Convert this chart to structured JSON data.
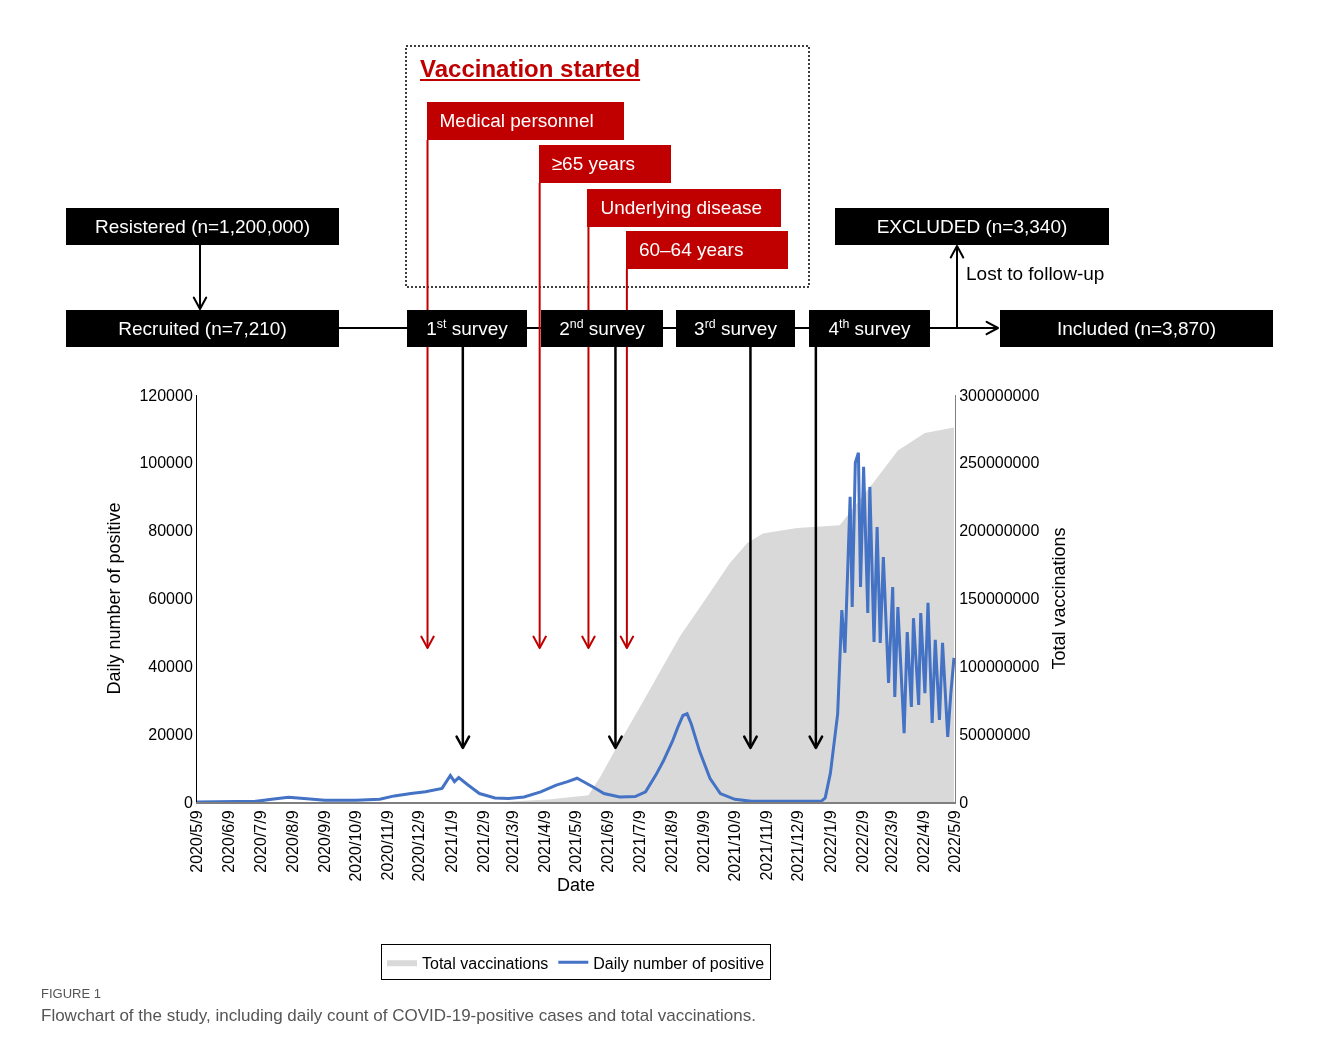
{
  "chart_data": {
    "type": "line",
    "xlabel": "Date",
    "ylabel": "Daily number of positive",
    "y2label": "Total vaccinations",
    "legend": "bottom",
    "xlim": [
      "2020-05-09",
      "2022-05-09"
    ],
    "xticks": [
      {
        "value": "2020-05-09",
        "label": "2020/5/9"
      },
      {
        "value": "2020-06-09",
        "label": "2020/6/9"
      },
      {
        "value": "2020-07-09",
        "label": "2020/7/9"
      },
      {
        "value": "2020-08-09",
        "label": "2020/8/9"
      },
      {
        "value": "2020-09-09",
        "label": "2020/9/9"
      },
      {
        "value": "2020-10-09",
        "label": "2020/10/9"
      },
      {
        "value": "2020-11-09",
        "label": "2020/11/9"
      },
      {
        "value": "2020-12-09",
        "label": "2020/12/9"
      },
      {
        "value": "2021-01-09",
        "label": "2021/1/9"
      },
      {
        "value": "2021-02-09",
        "label": "2021/2/9"
      },
      {
        "value": "2021-03-09",
        "label": "2021/3/9"
      },
      {
        "value": "2021-04-09",
        "label": "2021/4/9"
      },
      {
        "value": "2021-05-09",
        "label": "2021/5/9"
      },
      {
        "value": "2021-06-09",
        "label": "2021/6/9"
      },
      {
        "value": "2021-07-09",
        "label": "2021/7/9"
      },
      {
        "value": "2021-08-09",
        "label": "2021/8/9"
      },
      {
        "value": "2021-09-09",
        "label": "2021/9/9"
      },
      {
        "value": "2021-10-09",
        "label": "2021/10/9"
      },
      {
        "value": "2021-11-09",
        "label": "2021/11/9"
      },
      {
        "value": "2021-12-09",
        "label": "2021/12/9"
      },
      {
        "value": "2022-01-09",
        "label": "2022/1/9"
      },
      {
        "value": "2022-02-09",
        "label": "2022/2/9"
      },
      {
        "value": "2022-03-09",
        "label": "2022/3/9"
      },
      {
        "value": "2022-04-09",
        "label": "2022/4/9"
      },
      {
        "value": "2022-05-09",
        "label": "2022/5/9"
      }
    ],
    "ylim": [
      0,
      120000
    ],
    "yticks": [
      0,
      20000,
      40000,
      60000,
      80000,
      100000,
      120000
    ],
    "y2lim": [
      0,
      300000000
    ],
    "y2ticks": [
      0,
      50000000,
      100000000,
      150000000,
      200000000,
      250000000,
      300000000
    ],
    "series": [
      {
        "name": "Total vaccinations",
        "type": "area",
        "axis": "y2",
        "color": "#d9d9d9",
        "x": [
          "2021-03-01",
          "2021-04-15",
          "2021-05-21",
          "2021-06-01",
          "2021-06-14",
          "2021-07-17",
          "2021-08-17",
          "2021-09-12",
          "2021-10-04",
          "2021-10-21",
          "2021-11-05",
          "2021-12-08",
          "2022-01-18",
          "2022-02-21",
          "2022-03-15",
          "2022-04-10",
          "2022-05-08"
        ],
        "values": [
          0,
          2000000,
          5000000,
          18000000,
          36000000,
          80000000,
          122000000,
          151000000,
          176000000,
          191000000,
          198000000,
          202000000,
          204000000,
          237000000,
          259000000,
          272000000,
          276000000
        ]
      },
      {
        "name": "Daily number of positive",
        "type": "line",
        "color": "#4472c4",
        "x": [
          "2020-05-09",
          "2020-07-05",
          "2020-07-20",
          "2020-08-05",
          "2020-08-20",
          "2020-09-09",
          "2020-10-09",
          "2020-11-01",
          "2020-11-15",
          "2020-12-01",
          "2020-12-15",
          "2020-12-31",
          "2021-01-08",
          "2021-01-12",
          "2021-01-16",
          "2021-01-25",
          "2021-02-05",
          "2021-02-20",
          "2021-03-05",
          "2021-03-20",
          "2021-04-05",
          "2021-04-20",
          "2021-05-01",
          "2021-05-10",
          "2021-05-15",
          "2021-05-25",
          "2021-06-05",
          "2021-06-20",
          "2021-07-05",
          "2021-07-15",
          "2021-07-25",
          "2021-08-01",
          "2021-08-10",
          "2021-08-15",
          "2021-08-20",
          "2021-08-24",
          "2021-08-28",
          "2021-09-05",
          "2021-09-15",
          "2021-09-25",
          "2021-10-09",
          "2021-10-25",
          "2021-12-31",
          "2022-01-04",
          "2022-01-09",
          "2022-01-16",
          "2022-01-20",
          "2022-01-23",
          "2022-01-28",
          "2022-01-30",
          "2022-02-02",
          "2022-02-05",
          "2022-02-07",
          "2022-02-10",
          "2022-02-14",
          "2022-02-16",
          "2022-02-20",
          "2022-02-23",
          "2022-02-26",
          "2022-03-01",
          "2022-03-06",
          "2022-03-10",
          "2022-03-12",
          "2022-03-15",
          "2022-03-21",
          "2022-03-24",
          "2022-03-28",
          "2022-03-30",
          "2022-04-04",
          "2022-04-06",
          "2022-04-10",
          "2022-04-13",
          "2022-04-17",
          "2022-04-20",
          "2022-04-24",
          "2022-04-27",
          "2022-05-02",
          "2022-05-05",
          "2022-05-08"
        ],
        "values": [
          0,
          200,
          800,
          1400,
          1000,
          500,
          500,
          800,
          1800,
          2500,
          3000,
          4000,
          7800,
          6000,
          7200,
          5000,
          2500,
          1200,
          1000,
          1500,
          3000,
          5000,
          6000,
          7000,
          6200,
          4500,
          2500,
          1500,
          1600,
          3000,
          8000,
          12000,
          18000,
          22000,
          25500,
          26000,
          23000,
          15000,
          7000,
          2500,
          800,
          200,
          200,
          1200,
          8500,
          26000,
          56600,
          44000,
          90000,
          57500,
          100000,
          103000,
          63400,
          98800,
          55700,
          92900,
          47200,
          81100,
          46900,
          72200,
          35100,
          63400,
          31000,
          57500,
          20300,
          50100,
          28000,
          54200,
          28600,
          55700,
          32100,
          58700,
          23300,
          47800,
          24200,
          46900,
          19200,
          32100,
          42500
        ]
      }
    ],
    "ref_lines": [
      {
        "axis": "x",
        "value": "2020-12-17",
        "label": "Medical personnel",
        "color": "#c00000"
      },
      {
        "axis": "x",
        "value": "2021-04-04",
        "label": "≥65 years",
        "color": "#c00000"
      },
      {
        "axis": "x",
        "value": "2021-05-21",
        "label": "Underlying disease",
        "color": "#c00000"
      },
      {
        "axis": "x",
        "value": "2021-06-27",
        "label": "60–64 years",
        "color": "#c00000"
      },
      {
        "axis": "x",
        "value": "2021-01-20",
        "label": "1$^{st}$ survey",
        "color": "#000000"
      },
      {
        "axis": "x",
        "value": "2021-06-16",
        "label": "2$^{nd}$ survey",
        "color": "#000000"
      },
      {
        "axis": "x",
        "value": "2021-10-24",
        "label": "3$^{rd}$ survey",
        "color": "#000000"
      },
      {
        "axis": "x",
        "value": "2021-12-26",
        "label": "4$^{th}$ survey",
        "color": "#000000"
      }
    ],
    "annotations": [
      "Vaccination started",
      "Resistered (n=1,200,000)",
      "Recruited (n=7,210)",
      "EXCLUDED (n=3,340)",
      "Lost to follow-up",
      "Included (n=3,870)",
      "FIGURE 1",
      "Flowchart of the study, including daily count of COVID-19-positive cases and total vaccinations."
    ]
  }
}
